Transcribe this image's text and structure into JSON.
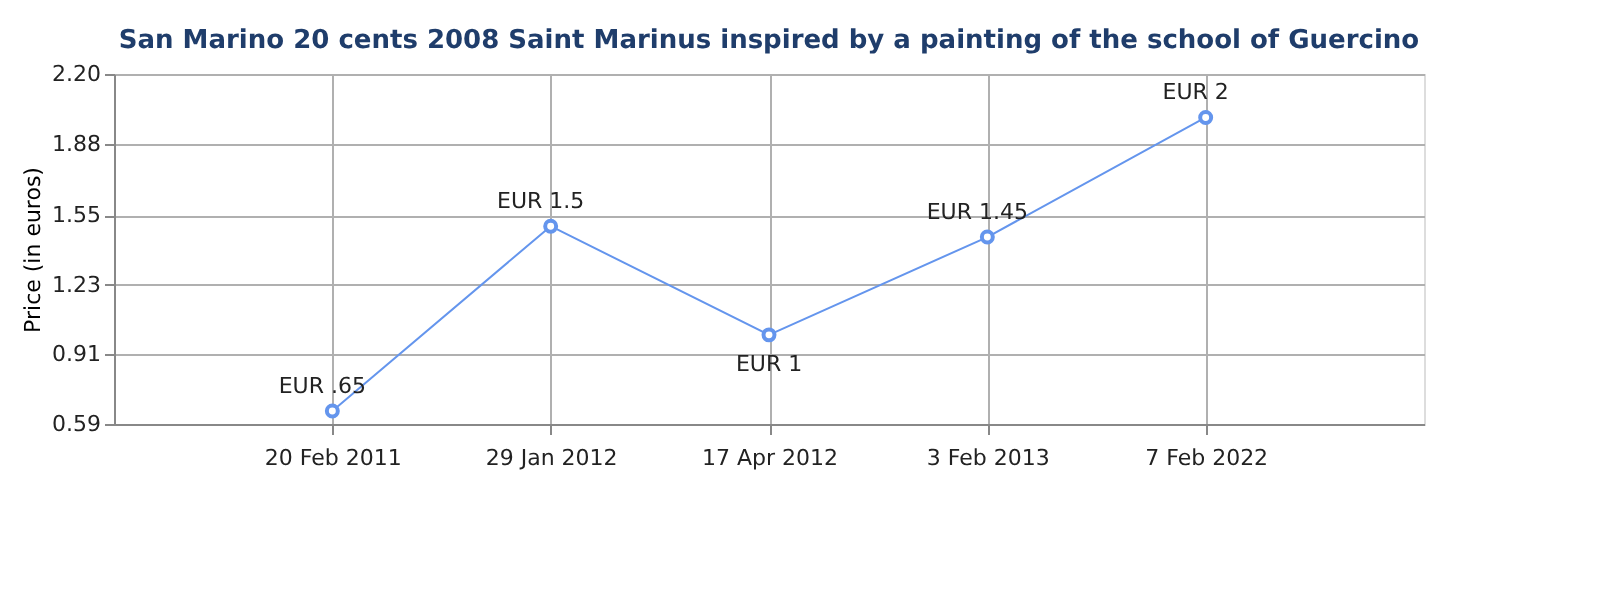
{
  "chart_data": {
    "type": "line",
    "title": "San Marino 20 cents 2008 Saint Marinus inspired by a painting of the school of Guercino",
    "ylabel": "Price (in euros)",
    "categories": [
      "20 Feb 2011",
      "29 Jan 2012",
      "17 Apr 2012",
      "3 Feb 2013",
      "7 Feb 2022"
    ],
    "series": [
      {
        "color": "#6495ed",
        "values": [
          0.65,
          1.5,
          1,
          1.45,
          2
        ],
        "value_labels": [
          "EUR .65",
          "EUR 1.5",
          "EUR 1",
          "EUR 1.45",
          "EUR 2"
        ]
      }
    ],
    "ylim": [
      0.59,
      2.2
    ],
    "yticks": [
      0.59,
      0.91,
      1.23,
      1.55,
      1.88,
      {
        "value": 2.2,
        "label": "2.20"
      }
    ],
    "grid": true,
    "marker": "circle",
    "line_style": "solid"
  }
}
